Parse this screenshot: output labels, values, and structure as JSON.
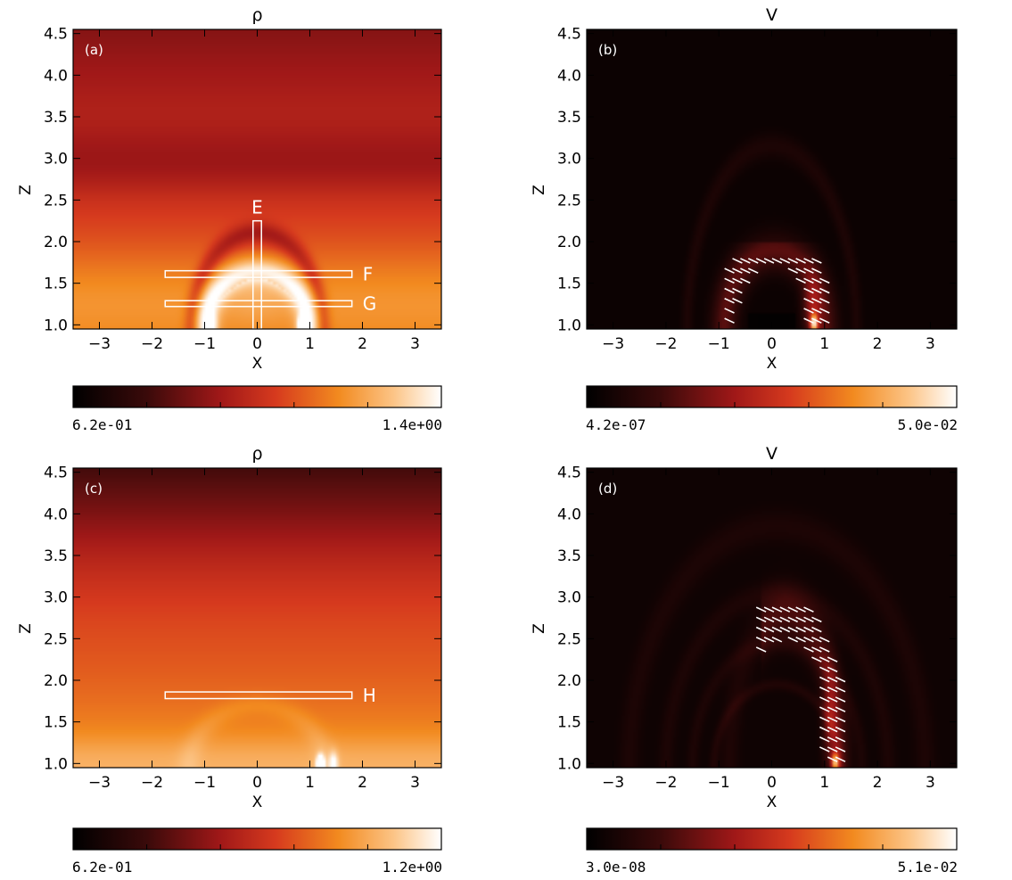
{
  "chart_data": [
    {
      "type": "heatmap",
      "panel_label": "(a)",
      "title": "ρ",
      "xlabel": "X",
      "ylabel": "Z",
      "xlim": [
        -3.5,
        3.5
      ],
      "ylim": [
        0.95,
        4.55
      ],
      "xticks": [
        -3,
        -2,
        -1,
        0,
        1,
        2,
        3
      ],
      "yticks": [
        1.0,
        1.5,
        2.0,
        2.5,
        3.0,
        3.5,
        4.0,
        4.5
      ],
      "colorbar": {
        "min_label": "6.2e-01",
        "max_label": "1.4e+00"
      },
      "pattern": "density_arch",
      "boxes": [
        {
          "label": "E",
          "x": [
            -0.08,
            0.08
          ],
          "z": [
            0.95,
            2.25
          ]
        },
        {
          "label": "F",
          "x": [
            -1.75,
            1.8
          ],
          "z": [
            1.57,
            1.65
          ]
        },
        {
          "label": "G",
          "x": [
            -1.75,
            1.8
          ],
          "z": [
            1.22,
            1.29
          ]
        }
      ]
    },
    {
      "type": "heatmap",
      "panel_label": "(b)",
      "title": "V",
      "xlabel": "X",
      "ylabel": "Z",
      "xlim": [
        -3.5,
        3.5
      ],
      "ylim": [
        0.95,
        4.55
      ],
      "xticks": [
        -3,
        -2,
        -1,
        0,
        1,
        2,
        3
      ],
      "yticks": [
        1.0,
        1.5,
        2.0,
        2.5,
        3.0,
        3.5,
        4.0,
        4.5
      ],
      "colorbar": {
        "min_label": "4.2e-07",
        "max_label": "5.0e-02"
      },
      "pattern": "velocity_loop_low",
      "vectors": {
        "region_x": [
          -0.8,
          1.1
        ],
        "region_z": [
          1.05,
          1.85
        ],
        "angle_deg": 25
      }
    },
    {
      "type": "heatmap",
      "panel_label": "(c)",
      "title": "ρ",
      "xlabel": "X",
      "ylabel": "Z",
      "xlim": [
        -3.5,
        3.5
      ],
      "ylim": [
        0.95,
        4.55
      ],
      "xticks": [
        -3,
        -2,
        -1,
        0,
        1,
        2,
        3
      ],
      "yticks": [
        1.0,
        1.5,
        2.0,
        2.5,
        3.0,
        3.5,
        4.0,
        4.5
      ],
      "colorbar": {
        "min_label": "6.2e-01",
        "max_label": "1.2e+00"
      },
      "pattern": "density_stratified",
      "boxes": [
        {
          "label": "H",
          "x": [
            -1.75,
            1.8
          ],
          "z": [
            1.78,
            1.86
          ]
        }
      ]
    },
    {
      "type": "heatmap",
      "panel_label": "(d)",
      "title": "V",
      "xlabel": "X",
      "ylabel": "Z",
      "xlim": [
        -3.5,
        3.5
      ],
      "ylim": [
        0.95,
        4.55
      ],
      "xticks": [
        -3,
        -2,
        -1,
        0,
        1,
        2,
        3
      ],
      "yticks": [
        1.0,
        1.5,
        2.0,
        2.5,
        3.0,
        3.5,
        4.0,
        4.5
      ],
      "colorbar": {
        "min_label": "3.0e-08",
        "max_label": "5.1e-02"
      },
      "pattern": "velocity_loop_high",
      "vectors": {
        "region_x": [
          -0.35,
          1.3
        ],
        "region_z": [
          1.05,
          2.85
        ],
        "angle_deg": 25
      }
    }
  ]
}
